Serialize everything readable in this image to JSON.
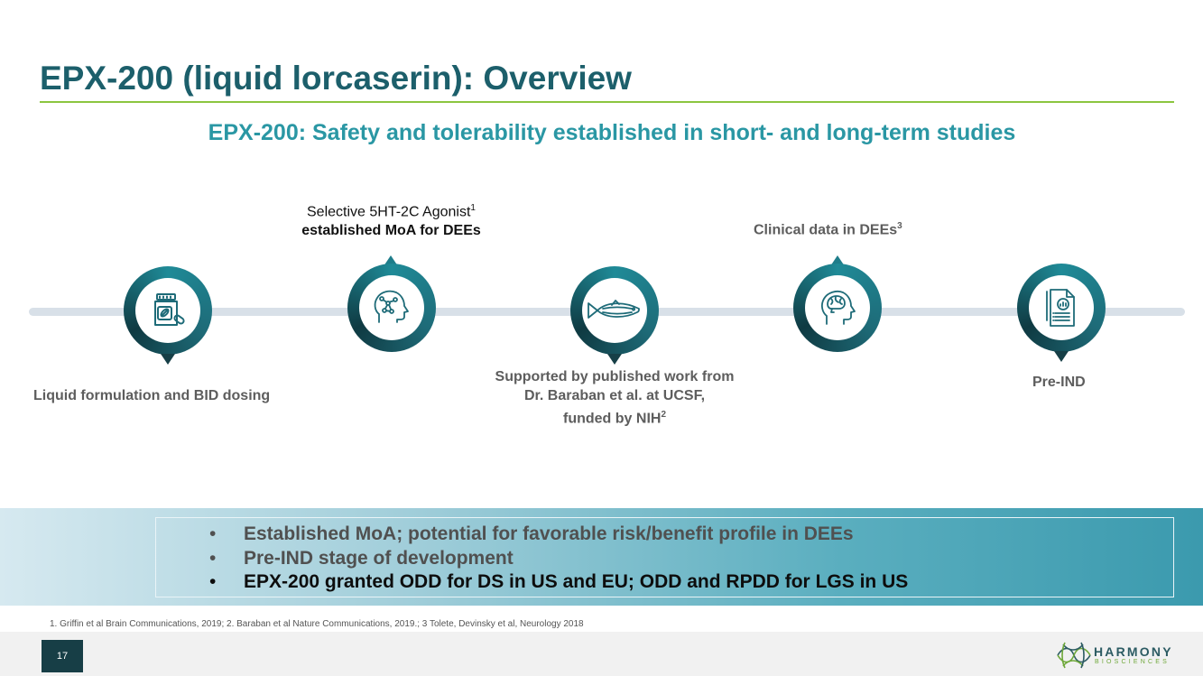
{
  "slide": {
    "title": "EPX-200 (liquid lorcaserin): Overview",
    "subtitle": "EPX-200: Safety and tolerability established in short- and long-term studies"
  },
  "timeline": {
    "nodes": [
      {
        "icon": "medicine-bottle-icon",
        "label": "Liquid formulation and BID dosing",
        "label_position": "below"
      },
      {
        "icon": "head-molecule-icon",
        "label_line1": "Selective 5HT-2C Agonist",
        "label_line1_sup": "1",
        "label_line2": "established MoA for DEEs",
        "label_position": "above"
      },
      {
        "icon": "zebrafish-icon",
        "label_line1": "Supported by published work from",
        "label_line2": "Dr. Baraban et al. at UCSF,",
        "label_line3": "funded by NIH",
        "label_line3_sup": "2",
        "label_position": "below"
      },
      {
        "icon": "head-brain-icon",
        "label": "Clinical data in DEEs",
        "label_sup": "3",
        "label_position": "above"
      },
      {
        "icon": "document-chart-icon",
        "label": "Pre-IND",
        "label_position": "below"
      }
    ]
  },
  "summary": {
    "bullet_char": "•",
    "bullets": [
      "Established MoA; potential for favorable risk/benefit profile in DEEs",
      "Pre-IND stage of development",
      "EPX-200 granted ODD for DS in US and EU; ODD and RPDD for LGS in US"
    ]
  },
  "footer": {
    "references": "1. Griffin et al Brain Communications, 2019; 2. Baraban et al Nature Communications, 2019.; 3 Tolete, Devinsky et al, Neurology 2018",
    "page_number": "17",
    "logo_name": "HARMONY",
    "logo_sub": "BIOSCIENCES"
  },
  "colors": {
    "title": "#1c5f6b",
    "subtitle": "#2a97a4",
    "rule": "#8bc53f",
    "node_ring_dark": "#0f3a42",
    "node_ring_light": "#1f8a97",
    "band_start": "#d6e9f0",
    "band_end": "#3b9aae"
  }
}
